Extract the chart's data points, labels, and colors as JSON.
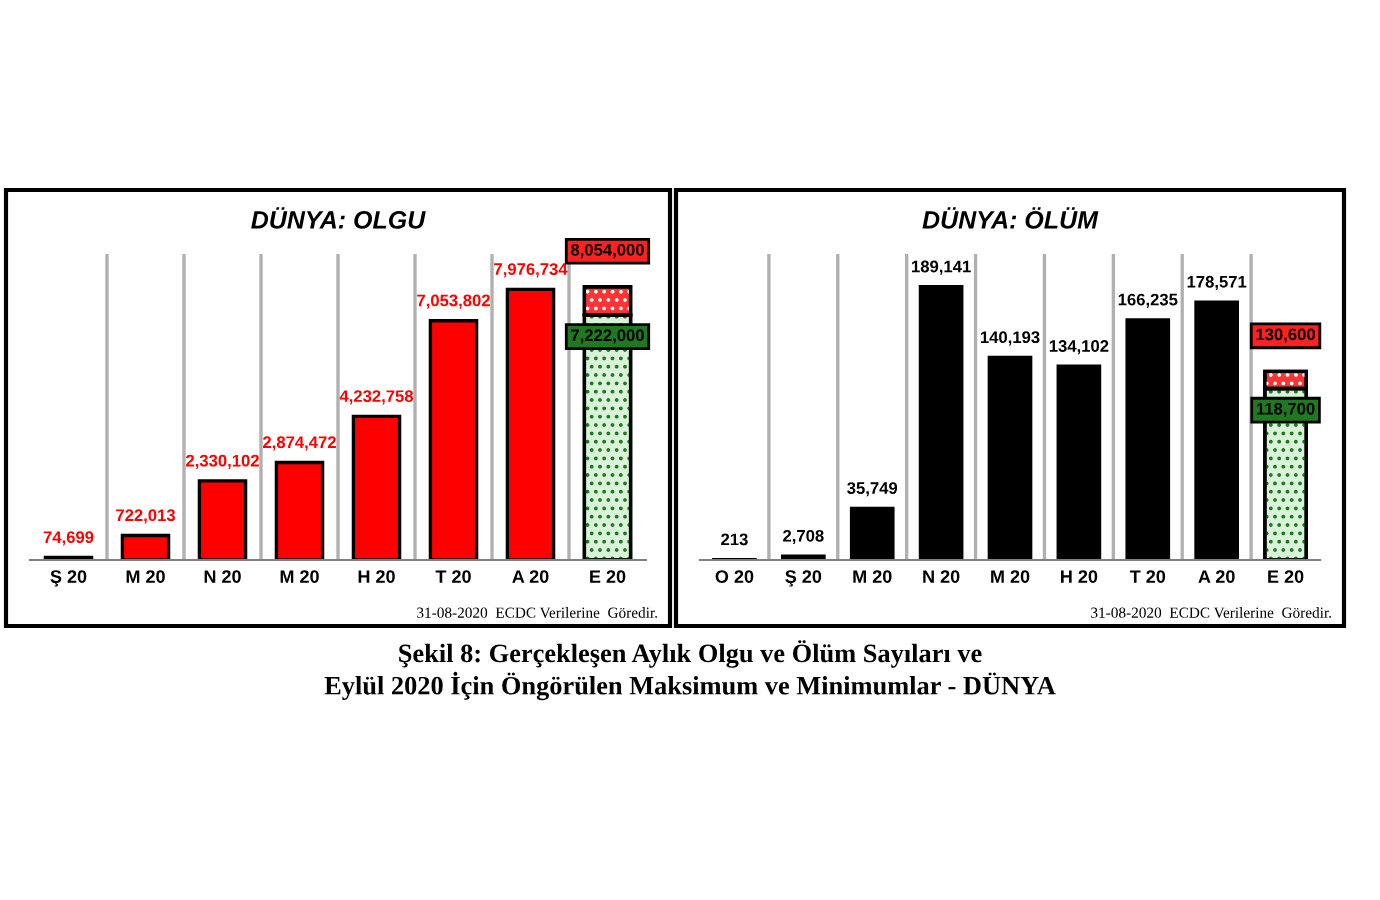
{
  "chart_data": [
    {
      "type": "bar",
      "title": "DÜNYA: OLGU",
      "categories": [
        "Ş 20",
        "M 20",
        "N 20",
        "M 20",
        "H 20",
        "T 20",
        "A 20",
        "E 20"
      ],
      "stacked": true,
      "grid": "x",
      "series": [
        {
          "color": "#ff0000",
          "values": [
            74699,
            722013,
            2330102,
            2874472,
            4232758,
            7053802,
            7976734,
            null
          ],
          "value_labels": [
            "74,699",
            "722,013",
            "2,330,102",
            "2,874,472",
            "4,232,758",
            "7,053,802",
            "7,976,734",
            null
          ]
        },
        {
          "color": "#d9f2d9",
          "values": [
            null,
            null,
            null,
            null,
            null,
            null,
            null,
            7222000
          ],
          "value_labels": [
            null,
            null,
            null,
            null,
            null,
            null,
            null,
            "7,222,000"
          ]
        },
        {
          "color": "#ff3333",
          "values": [
            null,
            null,
            null,
            null,
            null,
            null,
            null,
            832000
          ]
        }
      ],
      "totals": [
        null,
        null,
        null,
        null,
        null,
        null,
        null,
        "8,054,000"
      ],
      "annotations": [
        "31-08-2020  ECDC Verilerine  Göredir."
      ]
    },
    {
      "type": "bar",
      "title": "DÜNYA: ÖLÜM",
      "categories": [
        "O 20",
        "Ş 20",
        "M 20",
        "N 20",
        "M 20",
        "H 20",
        "T 20",
        "A 20",
        "E 20"
      ],
      "stacked": true,
      "grid": "x",
      "series": [
        {
          "color": "#000000",
          "values": [
            213,
            2708,
            35749,
            189141,
            140193,
            134102,
            166235,
            178571,
            null
          ],
          "value_labels": [
            "213",
            "2,708",
            "35,749",
            "189,141",
            "140,193",
            "134,102",
            "166,235",
            "178,571",
            null
          ]
        },
        {
          "color": "#d9f2d9",
          "values": [
            null,
            null,
            null,
            null,
            null,
            null,
            null,
            null,
            118700
          ],
          "value_labels": [
            null,
            null,
            null,
            null,
            null,
            null,
            null,
            null,
            "118,700"
          ]
        },
        {
          "color": "#ff3333",
          "values": [
            null,
            null,
            null,
            null,
            null,
            null,
            null,
            null,
            11900
          ]
        }
      ],
      "totals": [
        null,
        null,
        null,
        null,
        null,
        null,
        null,
        null,
        "130,600"
      ],
      "annotations": [
        "31-08-2020  ECDC Verilerine  Göredir.",
        "Şekil 8: Gerçekleşen Aylık Olgu ve Ölüm Sayıları ve",
        "Eylül 2020 İçin Öngörülen Maksimum ve Minimumlar - DÜNYA"
      ]
    }
  ]
}
